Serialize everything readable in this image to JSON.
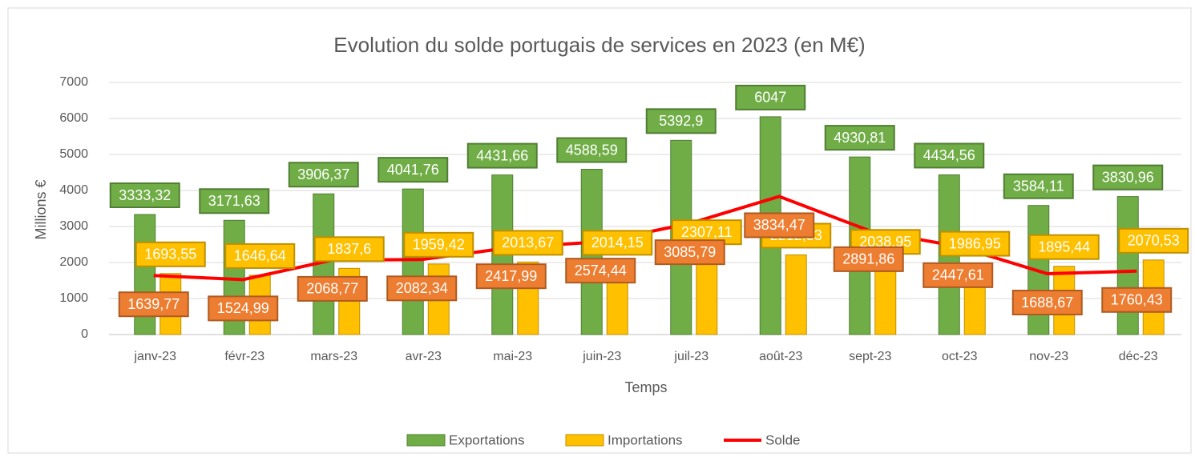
{
  "chart_data": {
    "type": "bar",
    "title": "Evolution du solde portugais de services en 2023 (en M€)",
    "x_label": "Temps",
    "y_label": "Millions €",
    "categories": [
      "janv-23",
      "févr-23",
      "mars-23",
      "avr-23",
      "mai-23",
      "juin-23",
      "juil-23",
      "août-23",
      "sept-23",
      "oct-23",
      "nov-23",
      "déc-23"
    ],
    "series": [
      {
        "name": "Exportations",
        "type": "bar",
        "color": "#70ad47",
        "values": [
          3333.32,
          3171.63,
          3906.37,
          4041.76,
          4431.66,
          4588.59,
          5392.9,
          6047,
          4930.81,
          4434.56,
          3584.11,
          3830.96
        ],
        "value_labels": [
          "3333,32",
          "3171,63",
          "3906,37",
          "4041,76",
          "4431,66",
          "4588,59",
          "5392,9",
          "6047",
          "4930,81",
          "4434,56",
          "3584,11",
          "3830,96"
        ]
      },
      {
        "name": "Importations",
        "type": "bar",
        "color": "#ffc000",
        "values": [
          1693.55,
          1646.64,
          1837.6,
          1959.42,
          2013.67,
          2014.15,
          2307.11,
          2212.53,
          2038.95,
          1986.95,
          1895.44,
          2070.53
        ],
        "value_labels": [
          "1693,55",
          "1646,64",
          "1837,6",
          "1959,42",
          "2013,67",
          "2014,15",
          "2307,11",
          "2212,53",
          "2038,95",
          "1986,95",
          "1895,44",
          "2070,53"
        ]
      },
      {
        "name": "Solde",
        "type": "line",
        "color": "#ff0000",
        "values": [
          1639.77,
          1524.99,
          2068.77,
          2082.34,
          2417.99,
          2574.44,
          3085.79,
          3834.47,
          2891.86,
          2447.61,
          1688.67,
          1760.43
        ],
        "value_labels": [
          "1639,77",
          "1524,99",
          "2068,77",
          "2082,34",
          "2417,99",
          "2574,44",
          "3085,79",
          "3834,47",
          "2891,86",
          "2447,61",
          "1688,67",
          "1760,43"
        ]
      }
    ],
    "ylim": [
      0,
      7000
    ],
    "yticks": [
      0,
      1000,
      2000,
      3000,
      4000,
      5000,
      6000,
      7000
    ],
    "grid": true,
    "legend": "bottom"
  }
}
